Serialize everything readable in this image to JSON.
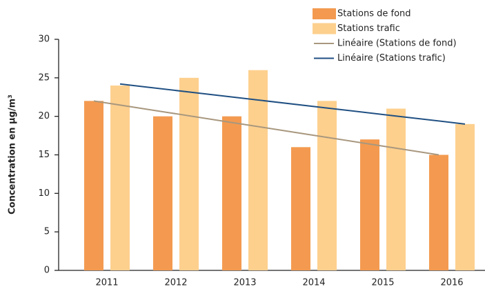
{
  "chart_data": {
    "type": "bar",
    "y_label": "Concentration en µg/m³",
    "categories": [
      "2011",
      "2012",
      "2013",
      "2014",
      "2015",
      "2016"
    ],
    "series": [
      {
        "name": "Stations de fond",
        "color": "#f39a50",
        "values": [
          22,
          20,
          20,
          16,
          17,
          15
        ]
      },
      {
        "name": "Stations trafic",
        "color": "#fdd08e",
        "values": [
          24,
          25,
          26,
          22,
          21,
          19
        ]
      },
      {
        "name": "Linéaire (Stations de fond)",
        "type": "line",
        "of": 0,
        "color": "#a8977e",
        "values": [
          22,
          20.6,
          19.2,
          17.8,
          16.4,
          15
        ]
      },
      {
        "name": "Linéaire (Stations trafic)",
        "type": "line",
        "of": 1,
        "color": "#1f4f82",
        "values": [
          24.2,
          23.16,
          22.12,
          21.08,
          20.04,
          19
        ]
      }
    ],
    "ylim": [
      0,
      30
    ],
    "yticks": [
      0,
      5,
      10,
      15,
      20,
      25,
      30
    ],
    "grid": false
  }
}
